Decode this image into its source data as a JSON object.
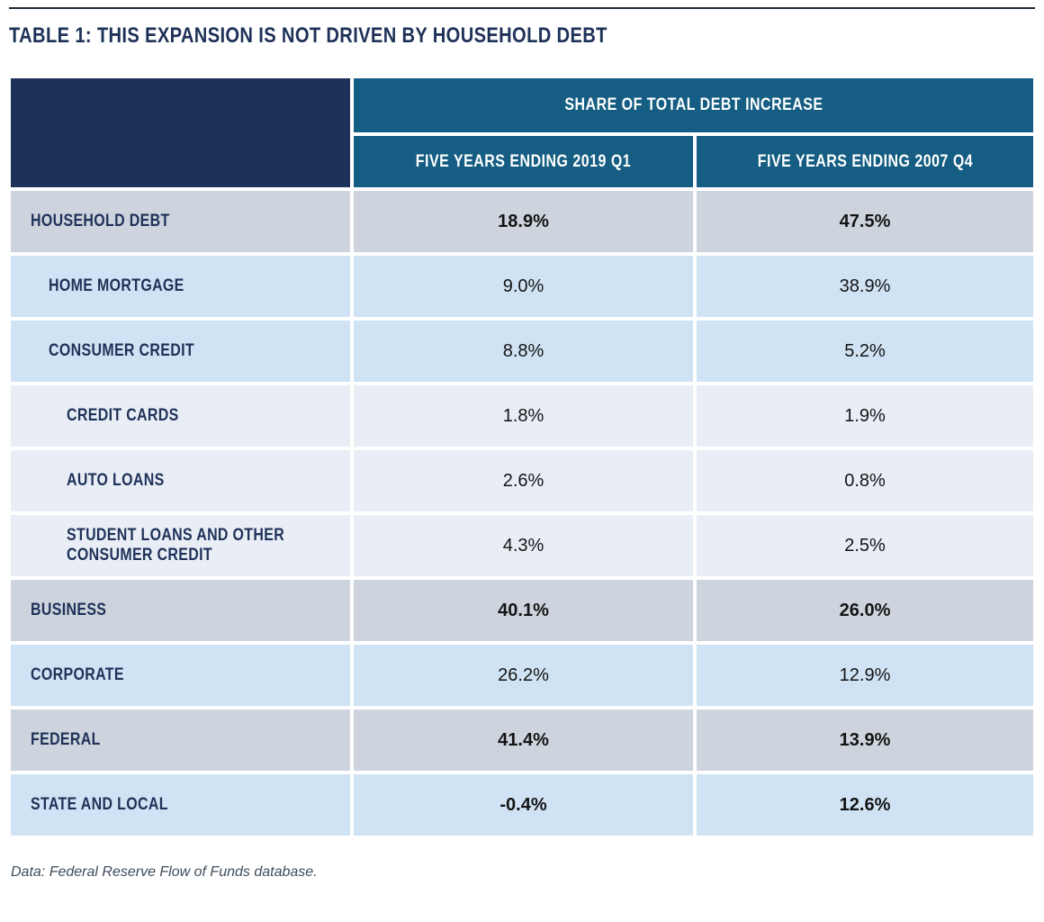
{
  "title": "TABLE 1: THIS EXPANSION IS NOT DRIVEN BY HOUSEHOLD DEBT",
  "chart_data": {
    "type": "table",
    "title": "TABLE 1: THIS EXPANSION IS NOT DRIVEN BY HOUSEHOLD DEBT",
    "group_header": "SHARE OF TOTAL DEBT INCREASE",
    "columns": [
      "FIVE YEARS ENDING 2019 Q1",
      "FIVE YEARS ENDING 2007 Q4"
    ],
    "rows": [
      {
        "label": "HOUSEHOLD DEBT",
        "indent": 0,
        "band": "gray",
        "emphasis": true,
        "values": [
          "18.9%",
          "47.5%"
        ]
      },
      {
        "label": "HOME MORTGAGE",
        "indent": 1,
        "band": "blue",
        "emphasis": false,
        "values": [
          "9.0%",
          "38.9%"
        ]
      },
      {
        "label": "CONSUMER CREDIT",
        "indent": 1,
        "band": "blue",
        "emphasis": false,
        "values": [
          "8.8%",
          "5.2%"
        ]
      },
      {
        "label": "CREDIT CARDS",
        "indent": 2,
        "band": "pale",
        "emphasis": false,
        "values": [
          "1.8%",
          "1.9%"
        ]
      },
      {
        "label": "AUTO LOANS",
        "indent": 2,
        "band": "pale",
        "emphasis": false,
        "values": [
          "2.6%",
          "0.8%"
        ]
      },
      {
        "label": "STUDENT LOANS AND OTHER CONSUMER CREDIT",
        "indent": 2,
        "band": "pale",
        "emphasis": false,
        "values": [
          "4.3%",
          "2.5%"
        ]
      },
      {
        "label": "BUSINESS",
        "indent": 0,
        "band": "gray",
        "emphasis": true,
        "values": [
          "40.1%",
          "26.0%"
        ]
      },
      {
        "label": "CORPORATE",
        "indent": 0,
        "band": "blue",
        "emphasis": false,
        "values": [
          "26.2%",
          "12.9%"
        ]
      },
      {
        "label": "FEDERAL",
        "indent": 0,
        "band": "gray",
        "emphasis": true,
        "values": [
          "41.4%",
          "13.9%"
        ]
      },
      {
        "label": "STATE AND LOCAL",
        "indent": 0,
        "band": "blue",
        "emphasis": true,
        "values": [
          "-0.4%",
          "12.6%"
        ]
      }
    ],
    "source_note": "Data: Federal Reserve Flow of Funds database."
  },
  "colors": {
    "navy": "#1E3158",
    "teal": "#155D82",
    "band_gray": "#CED4DD",
    "band_blue": "#D0E3F4",
    "band_pale": "#E9EEF6",
    "value_ink": "#141414",
    "rule": "#1D2A36",
    "note_ink": "#3E4D5C"
  }
}
